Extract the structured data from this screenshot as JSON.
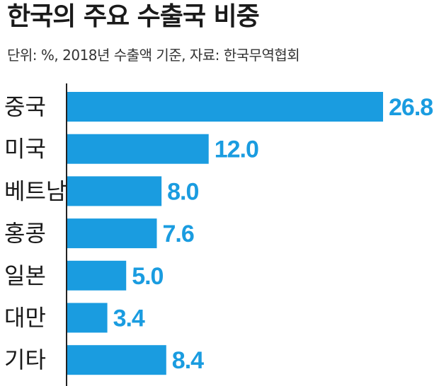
{
  "chart_data": {
    "type": "bar",
    "orientation": "horizontal",
    "title": "한국의 주요 수출국 비중",
    "subtitle": "단위: %, 2018년 수출액 기준, 자료: 한국무역협회",
    "categories": [
      "중국",
      "미국",
      "베트남",
      "홍콩",
      "일본",
      "대만",
      "기타"
    ],
    "values": [
      26.8,
      12.0,
      8.0,
      7.6,
      5.0,
      3.4,
      8.4
    ],
    "value_labels": [
      "26.8",
      "12.0",
      "8.0",
      "7.6",
      "5.0",
      "3.4",
      "8.4"
    ],
    "xlim": [
      0,
      26.8
    ],
    "grid": false,
    "legend": "none",
    "colors": {
      "bar": "#1a9ce0",
      "value_text": "#1a9ce0",
      "axis": "#222222",
      "text": "#1a1a1a"
    }
  }
}
